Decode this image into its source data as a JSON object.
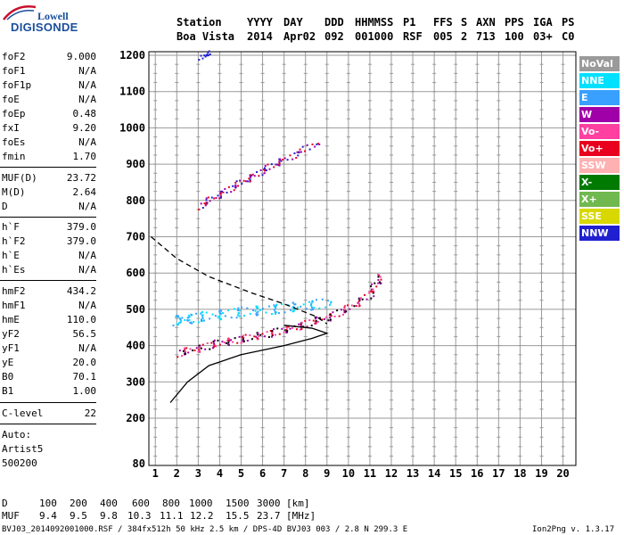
{
  "logo": {
    "line1": "Lowell",
    "line2": "DIGISONDE"
  },
  "header": {
    "labels": [
      "Station",
      "YYYY",
      "DAY",
      "DDD",
      "HHMMSS",
      "P1",
      "FFS",
      "S",
      "AXN",
      "PPS",
      "IGA",
      "PS"
    ],
    "values": [
      "Boa Vista",
      "2014",
      "Apr02",
      "092",
      "001000",
      "RSF",
      "005",
      "2",
      "713",
      "100",
      "03+",
      "C0"
    ]
  },
  "params_group1": [
    {
      "k": "foF2",
      "v": "9.000"
    },
    {
      "k": "foF1",
      "v": "N/A"
    },
    {
      "k": "foF1p",
      "v": "N/A"
    },
    {
      "k": "foE",
      "v": "N/A"
    },
    {
      "k": "foEp",
      "v": "0.48"
    },
    {
      "k": "fxI",
      "v": "9.20"
    },
    {
      "k": "foEs",
      "v": "N/A"
    },
    {
      "k": "fmin",
      "v": "1.70"
    }
  ],
  "params_group2": [
    {
      "k": "MUF(D)",
      "v": "23.72"
    },
    {
      "k": "M(D)",
      "v": "2.64"
    },
    {
      "k": "D",
      "v": "N/A"
    }
  ],
  "params_group3": [
    {
      "k": "h`F",
      "v": "379.0"
    },
    {
      "k": "h`F2",
      "v": "379.0"
    },
    {
      "k": "h`E",
      "v": "N/A"
    },
    {
      "k": "h`Es",
      "v": "N/A"
    }
  ],
  "params_group4": [
    {
      "k": "hmF2",
      "v": "434.2"
    },
    {
      "k": "hmF1",
      "v": "N/A"
    },
    {
      "k": "hmE",
      "v": "110.0"
    },
    {
      "k": "yF2",
      "v": "56.5"
    },
    {
      "k": "yF1",
      "v": "N/A"
    },
    {
      "k": "yE",
      "v": "20.0"
    },
    {
      "k": "B0",
      "v": "70.1"
    },
    {
      "k": "B1",
      "v": "1.00"
    }
  ],
  "params_group5": [
    {
      "k": "C-level",
      "v": "22"
    }
  ],
  "auto": [
    "Auto:",
    "Artist5",
    "500200"
  ],
  "legend": [
    {
      "label": "NoVal",
      "color": "#9a9a9a"
    },
    {
      "label": "NNE",
      "color": "#00e0ff"
    },
    {
      "label": "E",
      "color": "#3aa0ff"
    },
    {
      "label": "W",
      "color": "#a000a8"
    },
    {
      "label": "Vo-",
      "color": "#ff40a0"
    },
    {
      "label": "Vo+",
      "color": "#e8001e"
    },
    {
      "label": "SSW",
      "color": "#ffb0b0"
    },
    {
      "label": "X-",
      "color": "#007a00"
    },
    {
      "label": "X+",
      "color": "#70b850"
    },
    {
      "label": "SSE",
      "color": "#d8d800"
    },
    {
      "label": "NNW",
      "color": "#2020d0"
    }
  ],
  "footer": {
    "d_label": "D",
    "d_values": [
      "100",
      "200",
      "400",
      "600",
      "800",
      "1000",
      "1500",
      "3000",
      "[km]"
    ],
    "muf_label": "MUF",
    "muf_values": [
      "9.4",
      "9.5",
      "9.8",
      "10.3",
      "11.1",
      "12.2",
      "15.5",
      "23.7",
      "[MHz]"
    ],
    "file_info": "BVJ03_2014092001000.RSF / 384fx512h 50 kHz 2.5 km / DPS-4D BVJ03 003 / 2.8 N 299.3 E",
    "version": "Ion2Png v. 1.3.17"
  },
  "chart_data": {
    "type": "scatter",
    "title": "",
    "xlabel": "",
    "ylabel": "",
    "x_ticks": [
      1,
      2,
      3,
      4,
      5,
      6,
      7,
      8,
      9,
      10,
      11,
      12,
      13,
      14,
      15,
      16,
      17,
      18,
      19,
      20
    ],
    "y_ticks": [
      80,
      200,
      300,
      400,
      500,
      600,
      700,
      800,
      900,
      1000,
      1100,
      1200
    ],
    "xlim": [
      0.7,
      20.6
    ],
    "ylim": [
      80,
      1200
    ],
    "grid": true,
    "profile_solid": [
      [
        1.7,
        243
      ],
      [
        2.5,
        300
      ],
      [
        3.5,
        345
      ],
      [
        5,
        375
      ],
      [
        7,
        400
      ],
      [
        8.3,
        420
      ],
      [
        9.0,
        434
      ],
      [
        8.3,
        448
      ],
      [
        7,
        456
      ]
    ],
    "profile_dashed": [
      [
        0.8,
        700
      ],
      [
        2,
        640
      ],
      [
        3.5,
        590
      ],
      [
        5.5,
        545
      ],
      [
        7,
        515
      ],
      [
        8.5,
        480
      ],
      [
        9.0,
        460
      ]
    ],
    "trace_o": [
      [
        2.0,
        380
      ],
      [
        3,
        395
      ],
      [
        4,
        410
      ],
      [
        5,
        420
      ],
      [
        6,
        432
      ],
      [
        7,
        445
      ],
      [
        8,
        462
      ],
      [
        9,
        480
      ],
      [
        10,
        505
      ],
      [
        11,
        545
      ],
      [
        11.5,
        595
      ]
    ],
    "trace_multi": [
      [
        3,
        785
      ],
      [
        4,
        820
      ],
      [
        5,
        852
      ],
      [
        6,
        885
      ],
      [
        7,
        915
      ],
      [
        8.5,
        960
      ]
    ],
    "trace_top": [
      [
        3.0,
        1195
      ],
      [
        3.6,
        1210
      ]
    ],
    "trace_blue": [
      [
        1.8,
        470
      ],
      [
        3,
        480
      ],
      [
        5,
        495
      ],
      [
        7,
        505
      ],
      [
        9,
        520
      ]
    ]
  }
}
